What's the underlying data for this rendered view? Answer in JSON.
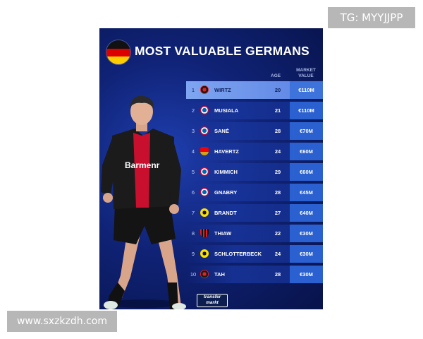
{
  "watermark_top": "TG: MYYJJPP",
  "watermark_bottom": "www.sxzkzdh.com",
  "card": {
    "title": "MOST VALUABLE GERMANS",
    "header_age": "AGE",
    "header_market_value": "MARKET VALUE",
    "shirt_text": "Barmenr",
    "logo_line1": "transfer",
    "logo_line2": "markt"
  },
  "rows": [
    {
      "rank": "1",
      "club_icon": "leverkusen-crest-icon",
      "name": "WIRTZ",
      "age": "20",
      "value": "€110M"
    },
    {
      "rank": "2",
      "club_icon": "bayern-crest-icon",
      "name": "MUSIALA",
      "age": "21",
      "value": "€110M"
    },
    {
      "rank": "3",
      "club_icon": "bayern-crest-icon",
      "name": "SANÉ",
      "age": "28",
      "value": "€70M"
    },
    {
      "rank": "4",
      "club_icon": "arsenal-crest-icon",
      "name": "HAVERTZ",
      "age": "24",
      "value": "€60M"
    },
    {
      "rank": "5",
      "club_icon": "bayern-crest-icon",
      "name": "KIMMICH",
      "age": "29",
      "value": "€60M"
    },
    {
      "rank": "6",
      "club_icon": "bayern-crest-icon",
      "name": "GNABRY",
      "age": "28",
      "value": "€45M"
    },
    {
      "rank": "7",
      "club_icon": "dortmund-crest-icon",
      "name": "BRANDT",
      "age": "27",
      "value": "€40M"
    },
    {
      "rank": "8",
      "club_icon": "milan-crest-icon",
      "name": "THIAW",
      "age": "22",
      "value": "€30M"
    },
    {
      "rank": "9",
      "club_icon": "dortmund-crest-icon",
      "name": "SCHLOTTERBECK",
      "age": "24",
      "value": "€30M"
    },
    {
      "rank": "10",
      "club_icon": "leverkusen-crest-icon",
      "name": "TAH",
      "age": "28",
      "value": "€30M"
    }
  ],
  "colors": {
    "card_bg": "#0f2275",
    "highlight_row": "#6a90ea",
    "value_cell": "#2a60cf",
    "flag_black": "#111111",
    "flag_red": "#dd0000",
    "flag_gold": "#ffce00"
  }
}
